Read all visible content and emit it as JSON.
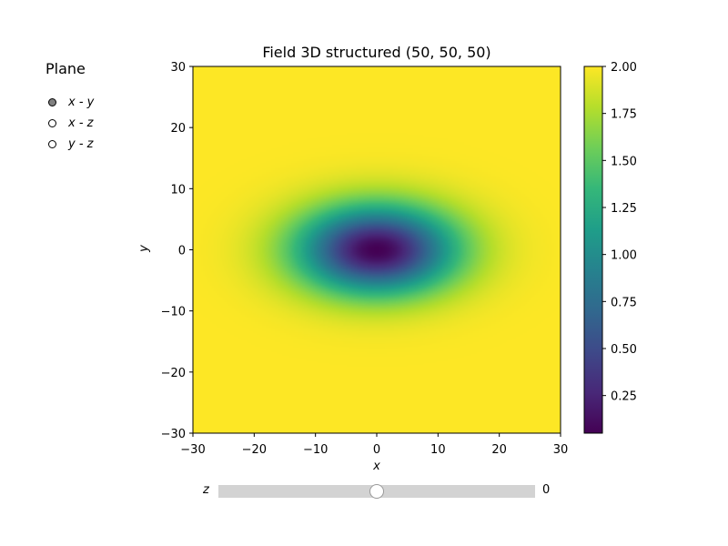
{
  "radio": {
    "title": "Plane",
    "selected": "x - y",
    "options": [
      "x - y",
      "x - z",
      "y - z"
    ]
  },
  "slider": {
    "label": "z",
    "value": 0,
    "min": -30,
    "max": 30
  },
  "chart_data": {
    "type": "heatmap",
    "title": "Field 3D structured (50, 50, 50)",
    "xlabel": "x",
    "ylabel": "y",
    "xlim": [
      -30,
      30
    ],
    "ylim": [
      -30,
      30
    ],
    "xticks": [
      -30,
      -20,
      -10,
      0,
      10,
      20,
      30
    ],
    "yticks": [
      -30,
      -20,
      -10,
      0,
      10,
      20,
      30
    ],
    "xtick_labels": [
      "−30",
      "−20",
      "−10",
      "0",
      "10",
      "20",
      "30"
    ],
    "ytick_labels": [
      "−30",
      "−20",
      "−10",
      "0",
      "10",
      "20",
      "30"
    ],
    "colormap": "viridis",
    "colorbar": {
      "min": 0.05,
      "max": 2.0,
      "ticks": [
        0.25,
        0.5,
        0.75,
        1.0,
        1.25,
        1.5,
        1.75,
        2.0
      ],
      "tick_labels": [
        "0.25",
        "0.50",
        "0.75",
        "1.00",
        "1.25",
        "1.50",
        "1.75",
        "2.00"
      ]
    },
    "field": {
      "baseline": 2.0,
      "min_value": 0.05,
      "center": [
        0,
        0
      ],
      "sigma_x": 9,
      "sigma_y": 5
    }
  }
}
